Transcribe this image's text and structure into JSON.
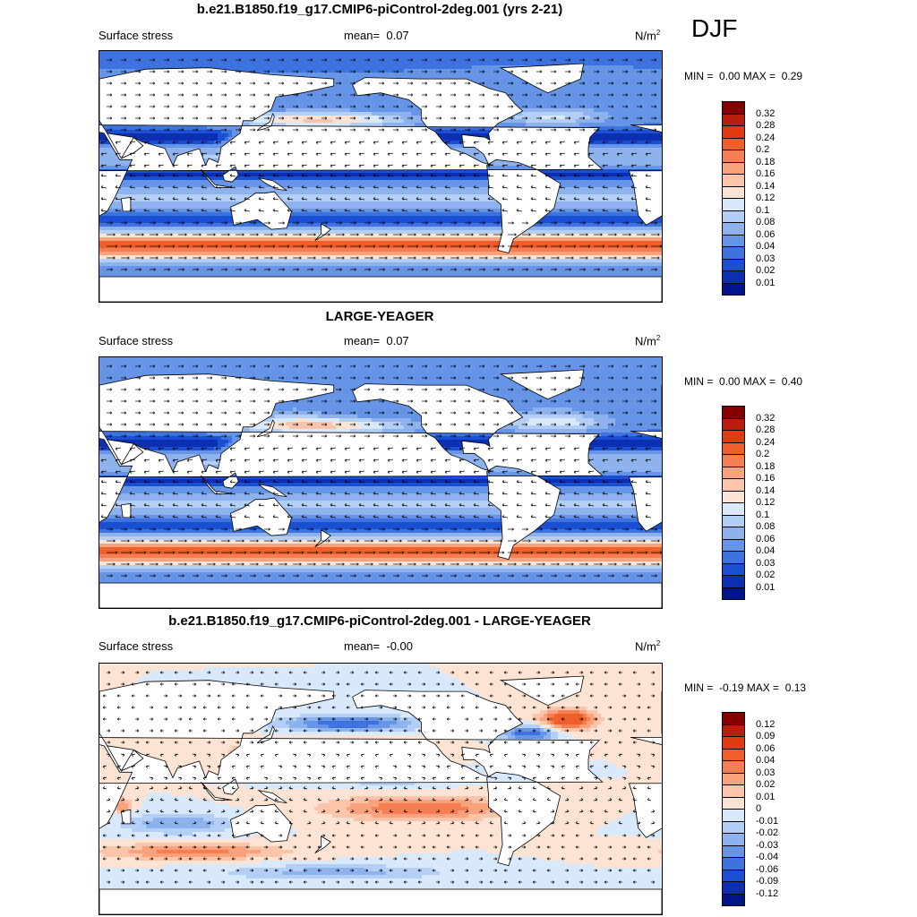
{
  "season": "DJF",
  "colors": {
    "pos": [
      "#fde3d3",
      "#fcc4a8",
      "#f9a27c",
      "#f57f52",
      "#f05e2a",
      "#e23a11",
      "#bb1d0c",
      "#870000"
    ],
    "neg": [
      "#d8e9fb",
      "#b4cff5",
      "#8db2ee",
      "#6694e6",
      "#3c73df",
      "#1a4fd4",
      "#0b2fb0",
      "#00158a"
    ],
    "zero": "#ffffff",
    "land": "#ffffff",
    "coast": "#000000"
  },
  "panels": [
    {
      "title": "b.e21.B1850.f19_g17.CMIP6-piControl-2deg.001 (yrs 2-21)",
      "left_label": "Surface stress",
      "mean_label": "mean=",
      "mean_value": "0.07",
      "units": "N/m",
      "units_sup": "2",
      "min_label": "MIN =",
      "min_value": "0.00",
      "max_label": "MAX =",
      "max_value": "0.29",
      "colorbar": [
        "0.32",
        "0.28",
        "0.24",
        "0.2",
        "0.18",
        "0.16",
        "0.14",
        "0.12",
        "0.1",
        "0.08",
        "0.06",
        "0.04",
        "0.03",
        "0.02",
        "0.01"
      ],
      "kind": "abs"
    },
    {
      "title": "LARGE-YEAGER",
      "left_label": "Surface stress",
      "mean_label": "mean=",
      "mean_value": "0.07",
      "units": "N/m",
      "units_sup": "2",
      "min_label": "MIN =",
      "min_value": "0.00",
      "max_label": "MAX =",
      "max_value": "0.40",
      "colorbar": [
        "0.32",
        "0.28",
        "0.24",
        "0.2",
        "0.18",
        "0.16",
        "0.14",
        "0.12",
        "0.1",
        "0.08",
        "0.06",
        "0.04",
        "0.03",
        "0.02",
        "0.01"
      ],
      "kind": "abs2"
    },
    {
      "title": "b.e21.B1850.f19_g17.CMIP6-piControl-2deg.001 - LARGE-YEAGER",
      "left_label": "Surface stress",
      "mean_label": "mean=",
      "mean_value": "-0.00",
      "units": "N/m",
      "units_sup": "2",
      "min_label": "MIN =",
      "min_value": "-0.19",
      "max_label": "MAX =",
      "max_value": "0.13",
      "colorbar": [
        "0.12",
        "0.09",
        "0.06",
        "0.04",
        "0.03",
        "0.02",
        "0.01",
        "0",
        "-0.01",
        "-0.02",
        "-0.03",
        "-0.04",
        "-0.06",
        "-0.09",
        "-0.12"
      ],
      "kind": "diff"
    }
  ]
}
